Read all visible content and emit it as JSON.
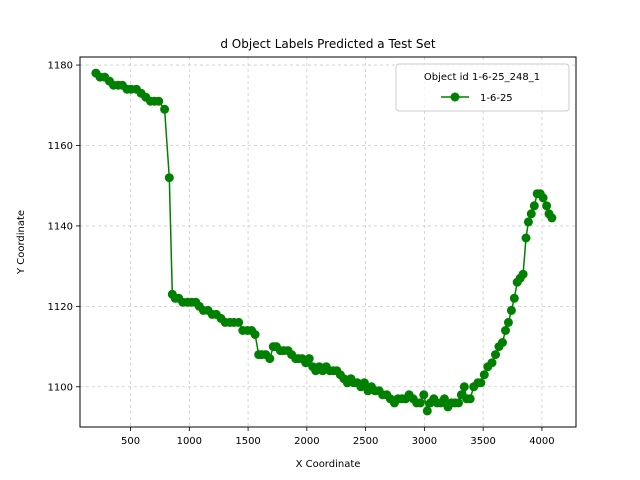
{
  "chart_data": {
    "type": "line",
    "title": "d Object Labels Predicted a Test Set",
    "xlabel": "X Coordinate",
    "ylabel": "Y Coordinate",
    "xlim": [
      70,
      4290
    ],
    "ylim": [
      1090,
      1182
    ],
    "xticks": [
      500,
      1000,
      1500,
      2000,
      2500,
      3000,
      3500,
      4000
    ],
    "yticks": [
      1100,
      1120,
      1140,
      1160,
      1180
    ],
    "grid": true,
    "legend": {
      "title": "Object id 1-6-25_248_1",
      "placement": "top-right"
    },
    "series": [
      {
        "name": "1-6-25",
        "color": "#008000",
        "marker": "circle",
        "x": [
          205,
          240,
          280,
          320,
          355,
          395,
          430,
          470,
          505,
          550,
          590,
          630,
          670,
          705,
          740,
          790,
          830,
          855,
          880,
          910,
          945,
          985,
          1020,
          1055,
          1085,
          1120,
          1160,
          1195,
          1230,
          1270,
          1305,
          1345,
          1380,
          1420,
          1455,
          1495,
          1530,
          1560,
          1590,
          1615,
          1650,
          1685,
          1715,
          1740,
          1775,
          1805,
          1840,
          1870,
          1905,
          1930,
          1960,
          1990,
          2020,
          2050,
          2075,
          2105,
          2135,
          2165,
          2195,
          2225,
          2255,
          2285,
          2315,
          2345,
          2375,
          2400,
          2430,
          2460,
          2490,
          2520,
          2550,
          2580,
          2615,
          2645,
          2680,
          2710,
          2745,
          2775,
          2810,
          2840,
          2870,
          2905,
          2935,
          2965,
          2995,
          3025,
          3050,
          3080,
          3110,
          3140,
          3170,
          3200,
          3230,
          3260,
          3290,
          3315,
          3340,
          3360,
          3390,
          3420,
          3455,
          3480,
          3510,
          3540,
          3575,
          3605,
          3635,
          3665,
          3690,
          3715,
          3740,
          3765,
          3790,
          3815,
          3840,
          3865,
          3885,
          3910,
          3935,
          3960,
          3985,
          4010,
          4040,
          4060,
          4085
        ],
        "y": [
          1178,
          1177,
          1177,
          1176,
          1175,
          1175,
          1175,
          1174,
          1174,
          1174,
          1173,
          1172,
          1171,
          1171,
          1171,
          1169,
          1152,
          1123,
          1122,
          1122,
          1121,
          1121,
          1121,
          1121,
          1120,
          1119,
          1119,
          1118,
          1118,
          1117,
          1116,
          1116,
          1116,
          1116,
          1114,
          1114,
          1114,
          1113,
          1108,
          1108,
          1108,
          1107,
          1110,
          1110,
          1109,
          1109,
          1109,
          1108,
          1107,
          1107,
          1107,
          1106,
          1107,
          1105,
          1104,
          1105,
          1104,
          1105,
          1104,
          1104,
          1104,
          1103,
          1102,
          1101,
          1102,
          1101,
          1101,
          1100,
          1101,
          1099,
          1100,
          1099,
          1099,
          1098,
          1098,
          1097,
          1096,
          1097,
          1097,
          1097,
          1098,
          1097,
          1096,
          1096,
          1098,
          1094,
          1096,
          1097,
          1096,
          1096,
          1097,
          1095,
          1096,
          1096,
          1096,
          1098,
          1100,
          1097,
          1097,
          1100,
          1101,
          1101,
          1103,
          1105,
          1106,
          1108,
          1110,
          1111,
          1114,
          1116,
          1119,
          1122,
          1126,
          1127,
          1128,
          1137,
          1141,
          1143,
          1145,
          1148,
          1148,
          1147,
          1145,
          1143,
          1142
        ]
      }
    ]
  }
}
